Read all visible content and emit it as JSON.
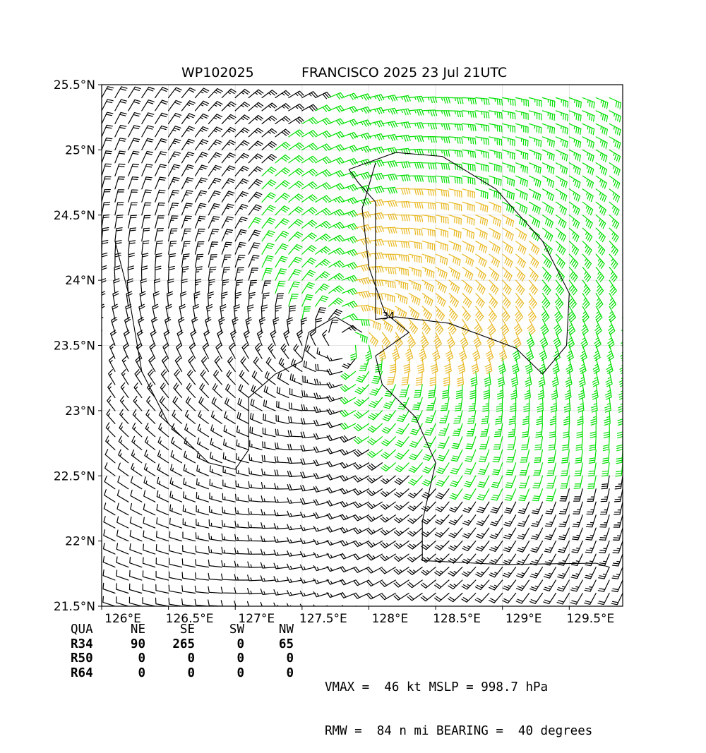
{
  "header": {
    "storm_id": "WP102025",
    "storm_info": "FRANCISCO 2025 23 Jul 21UTC"
  },
  "chart_data": {
    "type": "wind_barb_map",
    "x_axis": {
      "min": 126.0,
      "max": 129.9,
      "ticks": [
        126.0,
        126.5,
        127.0,
        127.5,
        128.0,
        128.5,
        129.0,
        129.5
      ],
      "tick_labels": [
        "126°E",
        "126.5°E",
        "127°E",
        "127.5°E",
        "128°E",
        "128.5°E",
        "129°E",
        "129.5°E"
      ]
    },
    "y_axis": {
      "min": 21.5,
      "max": 25.5,
      "ticks": [
        21.5,
        22.0,
        22.5,
        23.0,
        23.5,
        24.0,
        24.5,
        25.0,
        25.5
      ],
      "tick_labels": [
        "21.5°N",
        "22°N",
        "22.5°N",
        "23°N",
        "23.5°N",
        "24°N",
        "24.5°N",
        "25°N",
        "25.5°N"
      ]
    },
    "center": {
      "lon": 127.82,
      "lat": 23.52
    },
    "grid": true,
    "contour_label": "34",
    "colors": {
      "below_34kt": "#00e000",
      "low_speed": "#000000",
      "above_34kt": "#e8b820"
    }
  },
  "wind_radii": {
    "headers": [
      "QUA",
      "NE",
      "SE",
      "SW",
      "NW"
    ],
    "rows": [
      {
        "label": "R34",
        "values": [
          "90",
          "265",
          "0",
          "65"
        ]
      },
      {
        "label": "R50",
        "values": [
          "0",
          "0",
          "0",
          "0"
        ]
      },
      {
        "label": "R64",
        "values": [
          "0",
          "0",
          "0",
          "0"
        ]
      }
    ]
  },
  "summary": {
    "line1": "VMAX =  46 kt MSLP = 998.7 hPa",
    "line2": "RMW =  84 n mi BEARING =  40 degrees"
  }
}
